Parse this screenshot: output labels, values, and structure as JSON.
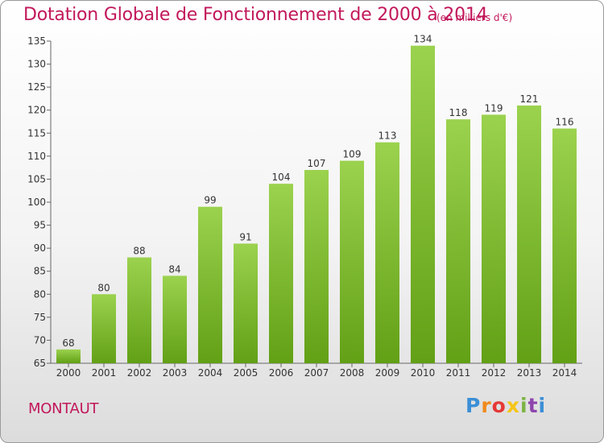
{
  "title": "Dotation Globale de Fonctionnement de 2000 à 2014",
  "unit_note": "(en milliers d'€)",
  "commune": "MONTAUT",
  "logo_text": "Proxiti",
  "colors": {
    "title": "#c2185b",
    "bar_light": "#9bd24e",
    "bar_dark": "#62a016",
    "axis": "#666666"
  },
  "chart_data": {
    "type": "bar",
    "title": "Dotation Globale de Fonctionnement de 2000 à 2014",
    "unit": "(en milliers d'€)",
    "categories": [
      "2000",
      "2001",
      "2002",
      "2003",
      "2004",
      "2005",
      "2006",
      "2007",
      "2008",
      "2009",
      "2010",
      "2011",
      "2012",
      "2013",
      "2014"
    ],
    "values": [
      68,
      80,
      88,
      84,
      99,
      91,
      104,
      107,
      109,
      113,
      134,
      118,
      119,
      121,
      116
    ],
    "ylim": [
      65,
      135
    ],
    "yticks": [
      65,
      70,
      75,
      80,
      85,
      90,
      95,
      100,
      105,
      110,
      115,
      120,
      125,
      130,
      135
    ],
    "xlabel": "",
    "ylabel": "",
    "grid": false,
    "data_labels": true
  }
}
